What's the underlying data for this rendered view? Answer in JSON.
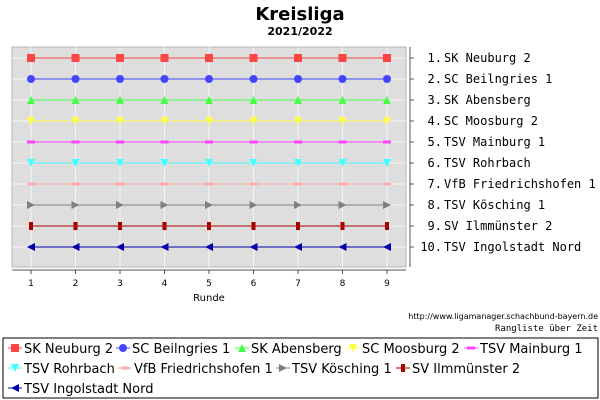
{
  "chart_data": {
    "type": "line",
    "title": "Kreisliga",
    "subtitle": "2021/2022",
    "xlabel": "Runde",
    "ylabel": "",
    "x": [
      1,
      2,
      3,
      4,
      5,
      6,
      7,
      8,
      9
    ],
    "ylim": [
      0.5,
      10.5
    ],
    "y_inverted": true,
    "grid": true,
    "legend_position": "bottom",
    "right_labels": [
      "1. SK Neuburg 2",
      "2. SC Beilngries 1",
      "3. SK Abensberg",
      "4. SC Moosburg 2",
      "5. TSV Mainburg 1",
      "6. TSV Rohrbach",
      "7. VfB Friedrichshofen 1",
      "8. TSV Kösching 1",
      "9. SV Ilmmünster 2",
      "10. TSV Ingolstadt Nord"
    ],
    "series": [
      {
        "name": "SK Neuburg 2",
        "color": "#ff4444",
        "marker": "square",
        "values": [
          1,
          1,
          1,
          1,
          1,
          1,
          1,
          1,
          1
        ]
      },
      {
        "name": "SC Beilngries 1",
        "color": "#4444ff",
        "marker": "circle",
        "values": [
          2,
          2,
          2,
          2,
          2,
          2,
          2,
          2,
          2
        ]
      },
      {
        "name": "SK Abensberg",
        "color": "#44ff44",
        "marker": "triangle-up",
        "values": [
          3,
          3,
          3,
          3,
          3,
          3,
          3,
          3,
          3
        ]
      },
      {
        "name": "SC Moosburg 2",
        "color": "#ffff44",
        "marker": "triangle-down",
        "values": [
          4,
          4,
          4,
          4,
          4,
          4,
          4,
          4,
          4
        ]
      },
      {
        "name": "TSV Mainburg 1",
        "color": "#ff44ff",
        "marker": "dash",
        "values": [
          5,
          5,
          5,
          5,
          5,
          5,
          5,
          5,
          5
        ]
      },
      {
        "name": "TSV Rohrbach",
        "color": "#44ffff",
        "marker": "triangle-down",
        "values": [
          6,
          6,
          6,
          6,
          6,
          6,
          6,
          6,
          6
        ]
      },
      {
        "name": "VfB Friedrichshofen 1",
        "color": "#ffaaaa",
        "marker": "dash",
        "values": [
          7,
          7,
          7,
          7,
          7,
          7,
          7,
          7,
          7
        ]
      },
      {
        "name": "TSV Kösching 1",
        "color": "#808080",
        "marker": "triangle-right",
        "values": [
          8,
          8,
          8,
          8,
          8,
          8,
          8,
          8,
          8
        ]
      },
      {
        "name": "SV Ilmmünster 2",
        "color": "#aa0000",
        "marker": "bar",
        "values": [
          9,
          9,
          9,
          9,
          9,
          9,
          9,
          9,
          9
        ]
      },
      {
        "name": "TSV Ingolstadt Nord",
        "color": "#0000aa",
        "marker": "triangle-left",
        "values": [
          10,
          10,
          10,
          10,
          10,
          10,
          10,
          10,
          10
        ]
      }
    ]
  },
  "footer": {
    "url": "http://www.ligamanager.schachbund-bayern.de",
    "caption": "Rangliste über Zeit"
  }
}
